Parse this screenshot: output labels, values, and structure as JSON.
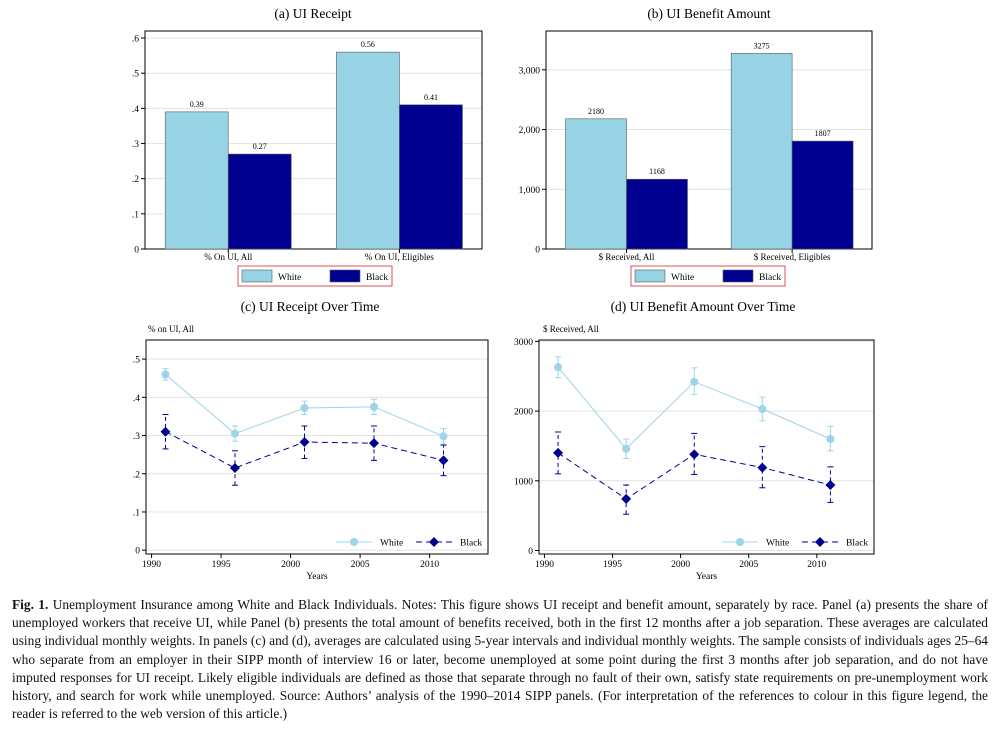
{
  "chart_data": [
    {
      "type": "bar",
      "title": "(a) UI Receipt",
      "categories": [
        "% On UI, All",
        "% On UI, Eligibles"
      ],
      "series": [
        {
          "name": "White",
          "values": [
            0.39,
            0.56
          ],
          "labels": [
            "0.39",
            "0.56"
          ]
        },
        {
          "name": "Black",
          "values": [
            0.27,
            0.41
          ],
          "labels": [
            "0.27",
            "0.41"
          ]
        }
      ],
      "ylim": [
        0,
        0.62
      ],
      "yticks": [
        0,
        0.1,
        0.2,
        0.3,
        0.4,
        0.5,
        0.6
      ],
      "ytick_labels": [
        "0",
        ".1",
        ".2",
        ".3",
        ".4",
        ".5",
        ".6"
      ],
      "grid": true,
      "legend": "bottom"
    },
    {
      "type": "bar",
      "title": "(b) UI Benefit Amount",
      "categories": [
        "$ Received, All",
        "$ Received, Eligibles"
      ],
      "series": [
        {
          "name": "White",
          "values": [
            2180,
            3275
          ],
          "labels": [
            "2180",
            "3275"
          ]
        },
        {
          "name": "Black",
          "values": [
            1168,
            1807
          ],
          "labels": [
            "1168",
            "1807"
          ]
        }
      ],
      "ylim": [
        0,
        3650
      ],
      "yticks": [
        0,
        1000,
        2000,
        3000
      ],
      "ytick_labels": [
        "0",
        "1,000",
        "2,000",
        "3,000"
      ],
      "grid": true,
      "legend": "bottom"
    },
    {
      "type": "line",
      "title": "(c) UI Receipt Over Time",
      "ylabel": "% on UI, All",
      "xlabel": "Years",
      "x": [
        1991,
        1996,
        2001,
        2006,
        2011
      ],
      "series": [
        {
          "name": "White",
          "values": [
            0.46,
            0.305,
            0.372,
            0.375,
            0.298
          ],
          "ci_low": [
            0.445,
            0.285,
            0.355,
            0.355,
            0.278
          ],
          "ci_high": [
            0.475,
            0.325,
            0.39,
            0.395,
            0.318
          ]
        },
        {
          "name": "Black",
          "values": [
            0.31,
            0.215,
            0.283,
            0.28,
            0.235
          ],
          "ci_low": [
            0.265,
            0.17,
            0.24,
            0.235,
            0.195
          ],
          "ci_high": [
            0.355,
            0.26,
            0.325,
            0.325,
            0.275
          ]
        }
      ],
      "xlim": [
        1989.6,
        2014.2
      ],
      "ylim": [
        -0.01,
        0.55
      ],
      "xticks": [
        1990,
        1995,
        2000,
        2005,
        2010
      ],
      "yticks": [
        0,
        0.1,
        0.2,
        0.3,
        0.4,
        0.5
      ],
      "ytick_labels": [
        "0",
        ".1",
        ".2",
        ".3",
        ".4",
        ".5"
      ],
      "grid": true,
      "legend": "bottom-right"
    },
    {
      "type": "line",
      "title": "(d) UI Benefit Amount Over Time",
      "ylabel": "$ Received, All",
      "xlabel": "Years",
      "x": [
        1991,
        1996,
        2001,
        2006,
        2011
      ],
      "series": [
        {
          "name": "White",
          "values": [
            2630,
            1460,
            2420,
            2030,
            1600
          ],
          "ci_low": [
            2480,
            1320,
            2240,
            1860,
            1430
          ],
          "ci_high": [
            2780,
            1600,
            2620,
            2200,
            1780
          ]
        },
        {
          "name": "Black",
          "values": [
            1400,
            740,
            1380,
            1190,
            940
          ],
          "ci_low": [
            1100,
            520,
            1090,
            900,
            690
          ],
          "ci_high": [
            1700,
            940,
            1680,
            1490,
            1200
          ]
        }
      ],
      "xlim": [
        1989.6,
        2014.2
      ],
      "ylim": [
        -50,
        3020
      ],
      "xticks": [
        1990,
        1995,
        2000,
        2005,
        2010
      ],
      "yticks": [
        0,
        1000,
        2000,
        3000
      ],
      "ytick_labels": [
        "0",
        "1000",
        "2000",
        "3000"
      ],
      "grid": true,
      "legend": "bottom-right"
    }
  ],
  "colors": {
    "white_bar": "#96d3e4",
    "black_bar": "#000090",
    "white_line": "#9dd4e8",
    "black_line": "#000090",
    "grid": "#e3e3e3",
    "legend_frame": "#d42a2a"
  },
  "caption": {
    "label": "Fig. 1.",
    "text": "Unemployment Insurance among White and Black Individuals. Notes: This figure shows UI receipt and benefit amount, separately by race. Panel (a) presents the share of unemployed workers that receive UI, while Panel (b) presents the total amount of benefits received, both in the first 12 months after a job separation. These averages are calculated using individual monthly weights. In panels (c) and (d), averages are calculated using 5-year intervals and individual monthly weights. The sample consists of individuals ages 25–64 who separate from an employer in their SIPP month of interview 16 or later, become unemployed at some point during the first 3 months after job separation, and do not have imputed responses for UI receipt. Likely eligible individuals are defined as those that separate through no fault of their own, satisfy state requirements on pre-unemployment work history, and search for work while unemployed. Source: Authors’ analysis of the 1990–2014 SIPP panels. (For interpretation of the references to colour in this figure legend, the reader is referred to the web version of this article.)"
  }
}
